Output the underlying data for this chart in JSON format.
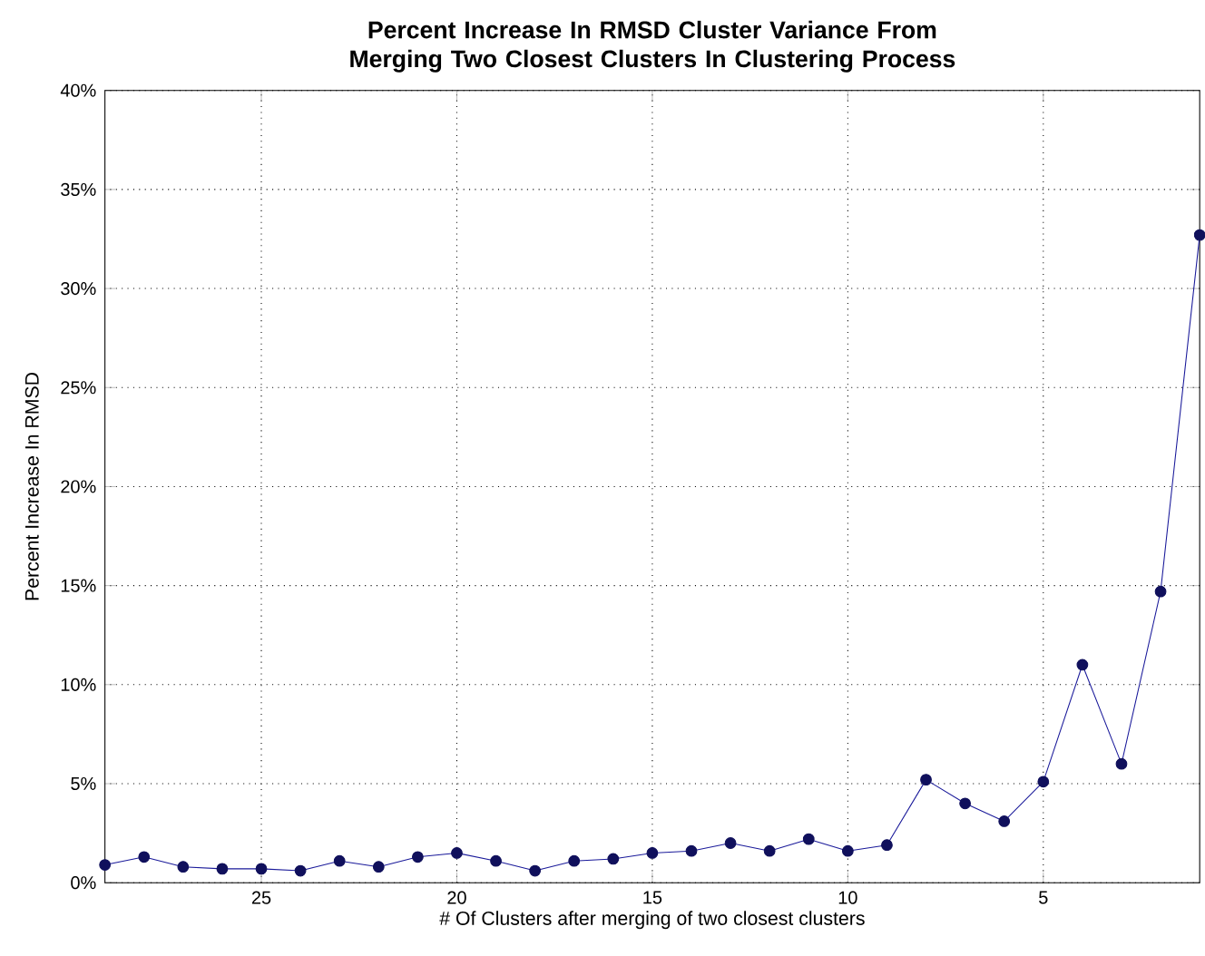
{
  "chart_data": {
    "type": "line",
    "title": "Percent Increase In RMSD Cluster Variance From Merging Two Closest Clusters In Clustering Process",
    "xlabel": "# Of Clusters after merging of two closest clusters",
    "ylabel": "Percent Increase In RMSD",
    "x": [
      29,
      28,
      27,
      26,
      25,
      24,
      23,
      22,
      21,
      20,
      19,
      18,
      17,
      16,
      15,
      14,
      13,
      12,
      11,
      10,
      9,
      8,
      7,
      6,
      5,
      4,
      3,
      2,
      1
    ],
    "series": [
      {
        "color": "#1a1a9a",
        "values": [
          0.9,
          1.3,
          0.8,
          0.7,
          0.7,
          0.6,
          1.1,
          0.8,
          1.3,
          1.5,
          1.1,
          0.6,
          1.1,
          1.2,
          1.5,
          1.6,
          2.0,
          1.6,
          2.2,
          1.6,
          1.9,
          5.2,
          4.0,
          3.1,
          5.1,
          11.0,
          6.0,
          14.7,
          32.7
        ]
      }
    ],
    "xlim": [
      29,
      1
    ],
    "xticks": [
      25,
      20,
      15,
      10,
      5
    ],
    "ylim": [
      0,
      40
    ],
    "yticks": [
      {
        "value": 0,
        "label": "0%"
      },
      {
        "value": 5,
        "label": "5%"
      },
      {
        "value": 10,
        "label": "10%"
      },
      {
        "value": 15,
        "label": "15%"
      },
      {
        "value": 20,
        "label": "20%"
      },
      {
        "value": 25,
        "label": "25%"
      },
      {
        "value": 30,
        "label": "30%"
      },
      {
        "value": 35,
        "label": "35%"
      },
      {
        "value": 40,
        "label": "40%"
      }
    ],
    "grid": true,
    "marker": "circle",
    "line_style": "solid"
  }
}
